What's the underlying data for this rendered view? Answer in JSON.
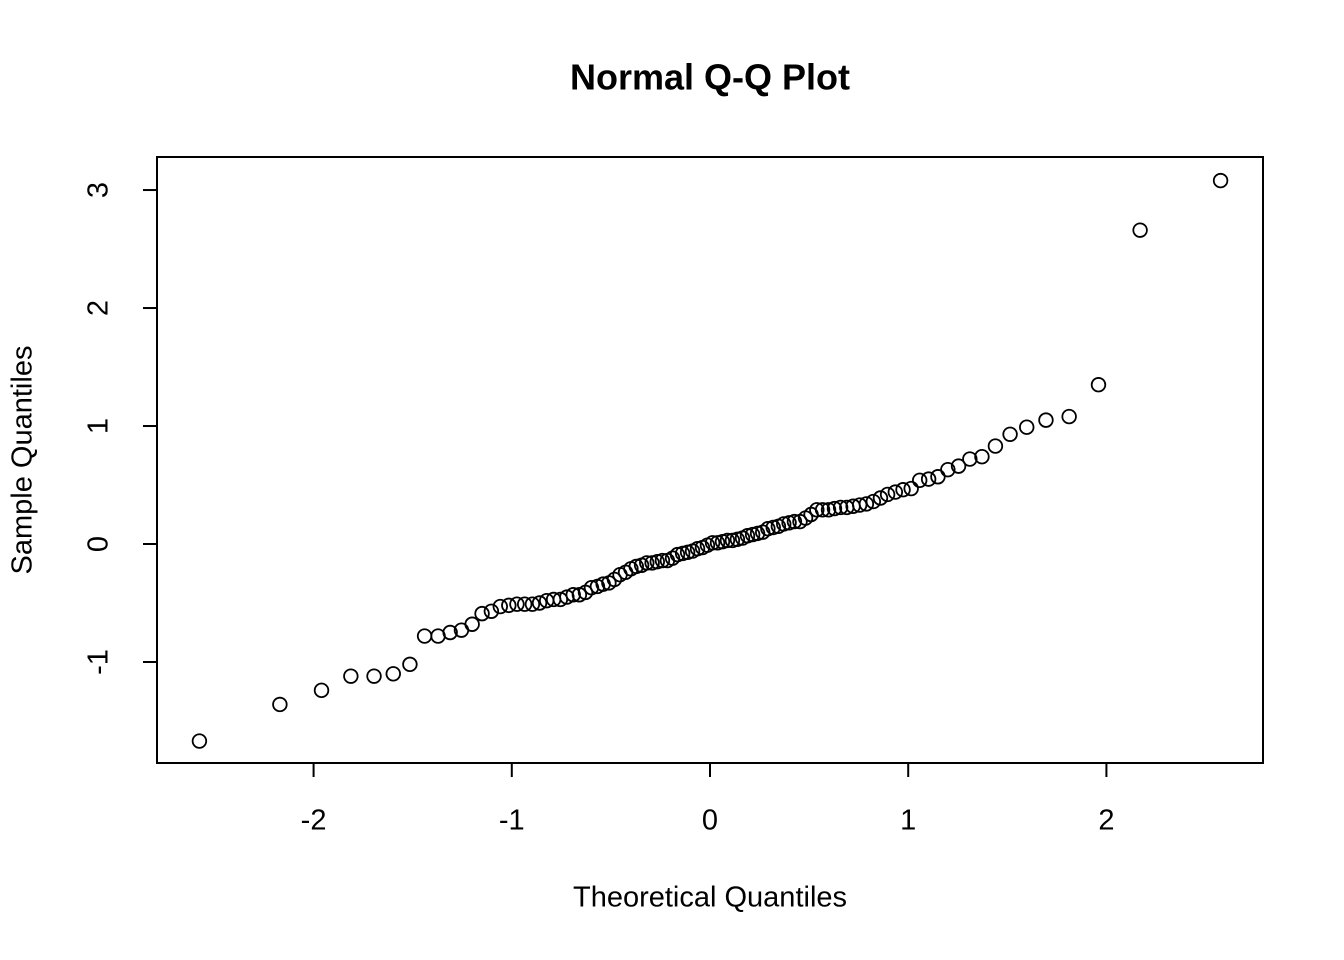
{
  "chart_data": {
    "type": "scatter",
    "title": "Normal Q-Q Plot",
    "x_label": "Theoretical Quantiles",
    "y_label": "Sample Quantiles",
    "x": [
      -2.576,
      -2.17,
      -1.96,
      -1.812,
      -1.695,
      -1.598,
      -1.514,
      -1.44,
      -1.372,
      -1.311,
      -1.254,
      -1.2,
      -1.15,
      -1.103,
      -1.058,
      -1.015,
      -0.974,
      -0.935,
      -0.896,
      -0.86,
      -0.824,
      -0.789,
      -0.755,
      -0.722,
      -0.69,
      -0.659,
      -0.628,
      -0.598,
      -0.568,
      -0.539,
      -0.51,
      -0.482,
      -0.454,
      -0.426,
      -0.399,
      -0.372,
      -0.345,
      -0.319,
      -0.292,
      -0.266,
      -0.24,
      -0.215,
      -0.189,
      -0.164,
      -0.138,
      -0.113,
      -0.088,
      -0.063,
      -0.038,
      -0.013,
      0.013,
      0.038,
      0.063,
      0.088,
      0.113,
      0.138,
      0.164,
      0.189,
      0.215,
      0.24,
      0.266,
      0.292,
      0.319,
      0.345,
      0.372,
      0.399,
      0.426,
      0.454,
      0.482,
      0.51,
      0.539,
      0.568,
      0.598,
      0.628,
      0.659,
      0.69,
      0.722,
      0.755,
      0.789,
      0.824,
      0.86,
      0.896,
      0.935,
      0.974,
      1.015,
      1.058,
      1.103,
      1.15,
      1.2,
      1.254,
      1.311,
      1.372,
      1.44,
      1.514,
      1.598,
      1.695,
      1.812,
      1.96,
      2.17,
      2.576
    ],
    "values": [
      -1.67,
      -1.36,
      -1.24,
      -1.12,
      -1.12,
      -1.1,
      -1.02,
      -0.78,
      -0.78,
      -0.75,
      -0.73,
      -0.68,
      -0.59,
      -0.57,
      -0.53,
      -0.52,
      -0.51,
      -0.51,
      -0.51,
      -0.5,
      -0.48,
      -0.47,
      -0.47,
      -0.45,
      -0.43,
      -0.43,
      -0.41,
      -0.37,
      -0.36,
      -0.34,
      -0.33,
      -0.3,
      -0.26,
      -0.24,
      -0.21,
      -0.19,
      -0.18,
      -0.16,
      -0.16,
      -0.15,
      -0.14,
      -0.14,
      -0.12,
      -0.09,
      -0.08,
      -0.07,
      -0.06,
      -0.04,
      -0.03,
      -0.01,
      0.01,
      0.01,
      0.02,
      0.03,
      0.03,
      0.04,
      0.05,
      0.07,
      0.08,
      0.09,
      0.1,
      0.13,
      0.14,
      0.15,
      0.17,
      0.18,
      0.19,
      0.19,
      0.22,
      0.25,
      0.29,
      0.29,
      0.29,
      0.3,
      0.31,
      0.31,
      0.32,
      0.33,
      0.34,
      0.36,
      0.39,
      0.42,
      0.44,
      0.46,
      0.47,
      0.54,
      0.55,
      0.57,
      0.63,
      0.66,
      0.72,
      0.74,
      0.83,
      0.93,
      0.99,
      1.05,
      1.08,
      1.35,
      2.66,
      3.08
    ],
    "color": "#000000",
    "xlim": [
      -2.79,
      2.79
    ],
    "ylim": [
      -1.856,
      3.28
    ],
    "xticks": [
      -2,
      -1,
      0,
      1,
      2
    ],
    "yticks": [
      -1,
      0,
      1,
      2,
      3
    ]
  }
}
